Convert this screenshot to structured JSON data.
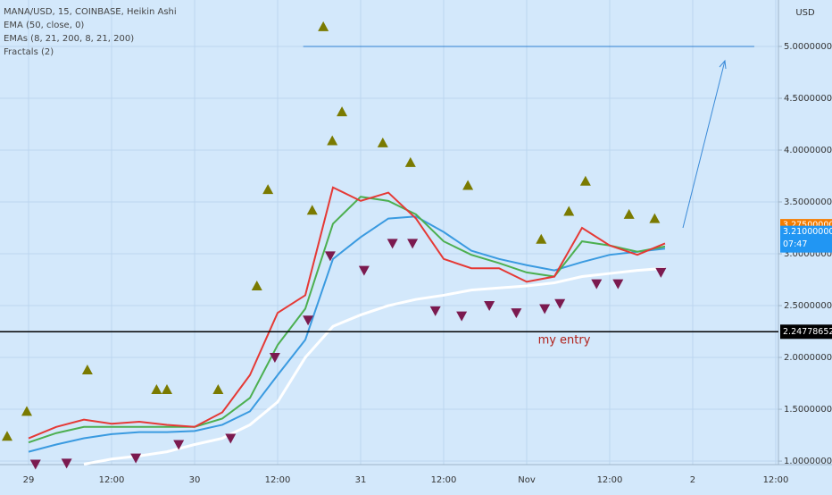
{
  "chart_data": {
    "type": "line",
    "title": "MANA/USD, 15, COINBASE, Heikin Ashi",
    "indicators": [
      "EMA (50, close, 0)",
      "EMAs (8, 21, 200, 8, 21, 200)",
      "Fractals (2)"
    ],
    "currency": "USD",
    "annotation": "my entry",
    "x": [
      0,
      4,
      8,
      12,
      16,
      20,
      24,
      28,
      32,
      36,
      40,
      44,
      48,
      52,
      56,
      60,
      64,
      68,
      72,
      76,
      80,
      84,
      88,
      92
    ],
    "xlim": [
      -4.13,
      108.39
    ],
    "xticks": [
      {
        "value": 0,
        "label": "29"
      },
      {
        "value": 12,
        "label": "12:00"
      },
      {
        "value": 24,
        "label": "30"
      },
      {
        "value": 36,
        "label": "12:00"
      },
      {
        "value": 48,
        "label": "31"
      },
      {
        "value": 60,
        "label": "12:00"
      },
      {
        "value": 72,
        "label": "Nov"
      },
      {
        "value": 84,
        "label": "12:00"
      },
      {
        "value": 96,
        "label": "2"
      },
      {
        "value": 108,
        "label": "12:00"
      }
    ],
    "ylim": [
      0.966,
      5.448
    ],
    "yticks": [
      {
        "value": 1,
        "label": "1.00000000"
      },
      {
        "value": 1.5,
        "label": "1.50000000"
      },
      {
        "value": 2,
        "label": "2.00000000"
      },
      {
        "value": 2.5,
        "label": "2.50000000"
      },
      {
        "value": 3,
        "label": "3.00000000"
      },
      {
        "value": 3.5,
        "label": "3.50000000"
      },
      {
        "value": 4,
        "label": "4.00000000"
      },
      {
        "value": 4.5,
        "label": "4.50000000"
      },
      {
        "value": 5,
        "label": "5.00000000"
      }
    ],
    "grid": true,
    "series": [
      {
        "name": "EMA 200",
        "color": "#ffffff",
        "values": [
          null,
          null,
          0.97,
          1.02,
          1.05,
          1.09,
          1.16,
          1.22,
          1.35,
          1.57,
          2.0,
          2.3,
          2.41,
          2.5,
          2.56,
          2.6,
          2.65,
          2.67,
          2.69,
          2.72,
          2.78,
          2.81,
          2.84,
          2.86
        ]
      },
      {
        "name": "EMA 50",
        "color": "#3a9ae0",
        "values": [
          1.09,
          1.16,
          1.22,
          1.26,
          1.28,
          1.28,
          1.29,
          1.35,
          1.48,
          1.83,
          2.17,
          2.95,
          3.16,
          3.34,
          3.36,
          3.21,
          3.03,
          2.95,
          2.89,
          2.84,
          2.92,
          2.99,
          3.02,
          3.05
        ]
      },
      {
        "name": "EMA 21",
        "color": "#4caf50",
        "values": [
          1.18,
          1.27,
          1.33,
          1.33,
          1.33,
          1.33,
          1.33,
          1.41,
          1.61,
          2.12,
          2.47,
          3.29,
          3.55,
          3.51,
          3.38,
          3.12,
          2.99,
          2.91,
          2.82,
          2.78,
          3.12,
          3.08,
          3.02,
          3.07
        ]
      },
      {
        "name": "EMA 8",
        "color": "#e53935",
        "values": [
          1.22,
          1.33,
          1.4,
          1.36,
          1.38,
          1.35,
          1.33,
          1.47,
          1.83,
          2.43,
          2.6,
          3.64,
          3.51,
          3.59,
          3.34,
          2.95,
          2.86,
          2.86,
          2.73,
          2.78,
          3.25,
          3.08,
          2.99,
          3.1
        ]
      }
    ],
    "fractals": {
      "up": {
        "color": "#7a7a00",
        "x": [
          -3.1,
          -0.26,
          8.5,
          18.5,
          20.0,
          27.4,
          33.0,
          34.6,
          41.0,
          42.6,
          43.9,
          45.3,
          51.2,
          55.2,
          63.5,
          74.1,
          78.1,
          80.5,
          86.8,
          90.5
        ],
        "values": [
          1.24,
          1.48,
          1.88,
          1.69,
          1.69,
          1.69,
          2.69,
          3.62,
          3.42,
          5.19,
          4.09,
          4.37,
          4.07,
          3.88,
          3.66,
          3.14,
          3.41,
          3.7,
          3.38,
          3.34
        ]
      },
      "down": {
        "color": "#7b1a4f",
        "x": [
          1.0,
          5.5,
          15.5,
          21.7,
          29.2,
          35.6,
          40.4,
          43.6,
          48.5,
          52.6,
          55.5,
          58.8,
          62.6,
          66.6,
          70.5,
          74.6,
          76.8,
          82.1,
          85.2,
          91.4
        ],
        "values": [
          0.97,
          0.98,
          1.03,
          1.16,
          1.22,
          2.0,
          2.36,
          2.98,
          2.84,
          3.1,
          3.1,
          2.45,
          2.4,
          2.5,
          2.43,
          2.47,
          2.52,
          2.71,
          2.71,
          2.82
        ]
      }
    },
    "target_line": {
      "value": 5,
      "from": 39.7,
      "to": 104.9,
      "color": "#2f7fd0"
    },
    "entry_line": {
      "value": 2.24778652,
      "label": "2.24778652",
      "color": "#000000"
    },
    "price_labels": [
      {
        "value": 3.275,
        "label": "3.27500000",
        "color": "#f57c00"
      },
      {
        "value": 3.21,
        "label": "3.21000000",
        "countdown": "07:47",
        "color": "#2196f3"
      }
    ]
  }
}
